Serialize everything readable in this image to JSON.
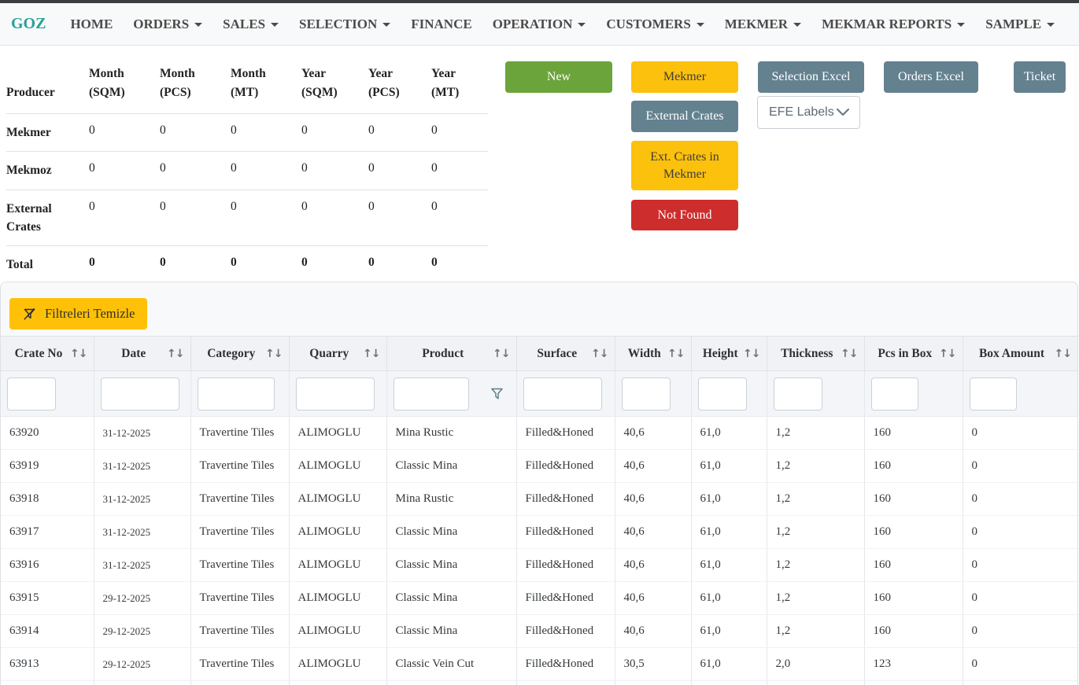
{
  "topbar": {
    "brand": "GOZ"
  },
  "nav_items": [
    {
      "label": "HOME",
      "dropdown": false
    },
    {
      "label": "ORDERS",
      "dropdown": true
    },
    {
      "label": "SALES",
      "dropdown": true
    },
    {
      "label": "SELECTION",
      "dropdown": true
    },
    {
      "label": "FINANCE",
      "dropdown": false
    },
    {
      "label": "OPERATION",
      "dropdown": true
    },
    {
      "label": "CUSTOMERS",
      "dropdown": true
    },
    {
      "label": "MEKMER",
      "dropdown": true
    },
    {
      "label": "MEKMAR REPORTS",
      "dropdown": true
    },
    {
      "label": "SAMPLE",
      "dropdown": true
    }
  ],
  "summary_table": {
    "header": [
      "Producer",
      "Month (SQM)",
      "Month (PCS)",
      "Month (MT)",
      "Year (SQM)",
      "Year (PCS)",
      "Year (MT)"
    ],
    "rows": [
      {
        "label": "Mekmer",
        "values": [
          "0",
          "0",
          "0",
          "0",
          "0",
          "0"
        ],
        "bold": false
      },
      {
        "label": "Mekmoz",
        "values": [
          "0",
          "0",
          "0",
          "0",
          "0",
          "0"
        ],
        "bold": false
      },
      {
        "label": "External Crates",
        "values": [
          "0",
          "0",
          "0",
          "0",
          "0",
          "0"
        ],
        "bold": false
      },
      {
        "label": "Total",
        "values": [
          "0",
          "0",
          "0",
          "0",
          "0",
          "0"
        ],
        "bold": true
      }
    ]
  },
  "buttons": {
    "new": "New",
    "mekmer": "Mekmer",
    "selection_excel": "Selection Excel",
    "orders_excel": "Orders Excel",
    "ticket": "Ticket",
    "external_crates": "External Crates",
    "ext_crates_in_mekmer": "Ext. Crates in Mekmer",
    "not_found": "Not Found",
    "efe_labels_selected": "EFE Labels"
  },
  "filter_bar": {
    "clear_filters_label": "Filtreleri Temizle"
  },
  "data_grid": {
    "sort_icon_glyph": "↑↓",
    "columns": [
      {
        "label": "Crate No",
        "sortable": true,
        "filter_value": "",
        "has_funnel_icon": false
      },
      {
        "label": "Date",
        "sortable": true,
        "filter_value": "",
        "has_funnel_icon": false
      },
      {
        "label": "Category",
        "sortable": true,
        "filter_value": "",
        "has_funnel_icon": false
      },
      {
        "label": "Quarry",
        "sortable": true,
        "filter_value": "",
        "has_funnel_icon": false
      },
      {
        "label": "Product",
        "sortable": true,
        "filter_value": "",
        "has_funnel_icon": true
      },
      {
        "label": "Surface",
        "sortable": true,
        "filter_value": "",
        "has_funnel_icon": false
      },
      {
        "label": "Width",
        "sortable": true,
        "filter_value": "",
        "has_funnel_icon": false
      },
      {
        "label": "Height",
        "sortable": true,
        "filter_value": "",
        "has_funnel_icon": false
      },
      {
        "label": "Thickness",
        "sortable": true,
        "filter_value": "",
        "has_funnel_icon": false
      },
      {
        "label": "Pcs in Box",
        "sortable": true,
        "filter_value": "",
        "has_funnel_icon": false
      },
      {
        "label": "Box Amount",
        "sortable": true,
        "filter_value": "",
        "has_funnel_icon": false
      }
    ],
    "rows": [
      [
        "63920",
        "31-12-2025",
        "Travertine Tiles",
        "ALIMOGLU",
        "Mina Rustic",
        "Filled&Honed",
        "40,6",
        "61,0",
        "1,2",
        "160",
        "0"
      ],
      [
        "63919",
        "31-12-2025",
        "Travertine Tiles",
        "ALIMOGLU",
        "Classic Mina",
        "Filled&Honed",
        "40,6",
        "61,0",
        "1,2",
        "160",
        "0"
      ],
      [
        "63918",
        "31-12-2025",
        "Travertine Tiles",
        "ALIMOGLU",
        "Mina Rustic",
        "Filled&Honed",
        "40,6",
        "61,0",
        "1,2",
        "160",
        "0"
      ],
      [
        "63917",
        "31-12-2025",
        "Travertine Tiles",
        "ALIMOGLU",
        "Classic Mina",
        "Filled&Honed",
        "40,6",
        "61,0",
        "1,2",
        "160",
        "0"
      ],
      [
        "63916",
        "31-12-2025",
        "Travertine Tiles",
        "ALIMOGLU",
        "Classic Mina",
        "Filled&Honed",
        "40,6",
        "61,0",
        "1,2",
        "160",
        "0"
      ],
      [
        "63915",
        "29-12-2025",
        "Travertine Tiles",
        "ALIMOGLU",
        "Classic Mina",
        "Filled&Honed",
        "40,6",
        "61,0",
        "1,2",
        "160",
        "0"
      ],
      [
        "63914",
        "29-12-2025",
        "Travertine Tiles",
        "ALIMOGLU",
        "Classic Mina",
        "Filled&Honed",
        "40,6",
        "61,0",
        "1,2",
        "160",
        "0"
      ],
      [
        "63913",
        "29-12-2025",
        "Travertine Tiles",
        "ALIMOGLU",
        "Classic Vein Cut",
        "Filled&Honed",
        "30,5",
        "61,0",
        "2,0",
        "123",
        "0"
      ]
    ]
  },
  "colors": {
    "brand_teal": "#2aa095",
    "button_green": "#6ba43a",
    "button_amber": "#fcc10d",
    "button_slate": "#64818f",
    "button_red": "#ce2d2d",
    "clear_filter_yellow": "#ffc107"
  }
}
